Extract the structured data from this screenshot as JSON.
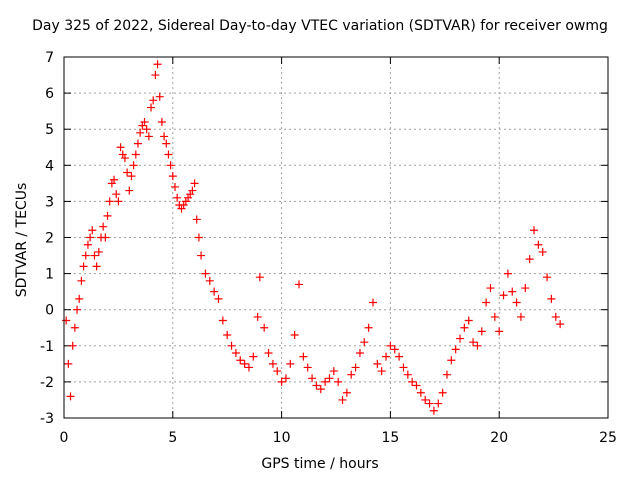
{
  "chart_data": {
    "type": "scatter",
    "title": "Day 325 of 2022, Sidereal Day-to-day VTEC variation (SDTVAR) for receiver owmg",
    "xlabel": "GPS time / hours",
    "ylabel": "SDTVAR / TECUs",
    "xlim": [
      0,
      25
    ],
    "ylim": [
      -3,
      7
    ],
    "xticks": [
      0,
      5,
      10,
      15,
      20,
      25
    ],
    "yticks": [
      -3,
      -2,
      -1,
      0,
      1,
      2,
      3,
      4,
      5,
      6,
      7
    ],
    "grid": true,
    "marker": "+",
    "color": "#ff0000",
    "series": [
      {
        "name": "SDTVAR",
        "x": [
          0.1,
          0.2,
          0.3,
          0.4,
          0.5,
          0.6,
          0.7,
          0.8,
          0.9,
          1.0,
          1.1,
          1.2,
          1.3,
          1.4,
          1.5,
          1.6,
          1.7,
          1.8,
          1.9,
          2.0,
          2.1,
          2.2,
          2.3,
          2.4,
          2.5,
          2.6,
          2.7,
          2.8,
          2.9,
          3.0,
          3.1,
          3.2,
          3.3,
          3.4,
          3.5,
          3.6,
          3.7,
          3.8,
          3.9,
          4.0,
          4.1,
          4.2,
          4.3,
          4.4,
          4.5,
          4.6,
          4.7,
          4.8,
          4.9,
          5.0,
          5.1,
          5.2,
          5.3,
          5.4,
          5.5,
          5.6,
          5.7,
          5.8,
          5.9,
          6.0,
          6.1,
          6.2,
          6.3,
          6.5,
          6.7,
          6.9,
          7.1,
          7.3,
          7.5,
          7.7,
          7.9,
          8.1,
          8.3,
          8.5,
          8.7,
          8.9,
          9.0,
          9.2,
          9.4,
          9.6,
          9.8,
          10.0,
          10.2,
          10.4,
          10.6,
          10.8,
          11.0,
          11.2,
          11.4,
          11.6,
          11.8,
          12.0,
          12.2,
          12.4,
          12.6,
          12.8,
          13.0,
          13.2,
          13.4,
          13.6,
          13.8,
          14.0,
          14.2,
          14.4,
          14.6,
          14.8,
          15.0,
          15.2,
          15.4,
          15.6,
          15.8,
          16.0,
          16.2,
          16.4,
          16.6,
          16.8,
          17.0,
          17.2,
          17.4,
          17.6,
          17.8,
          18.0,
          18.2,
          18.4,
          18.6,
          18.8,
          19.0,
          19.2,
          19.4,
          19.6,
          19.8,
          20.0,
          20.2,
          20.4,
          20.6,
          20.8,
          21.0,
          21.2,
          21.4,
          21.6,
          21.8,
          22.0,
          22.2,
          22.4,
          22.6,
          22.8
        ],
        "values": [
          -0.3,
          -1.5,
          -2.4,
          -1.0,
          -0.5,
          0.0,
          0.3,
          0.8,
          1.2,
          1.5,
          1.8,
          2.0,
          2.2,
          1.5,
          1.2,
          1.6,
          2.0,
          2.3,
          2.0,
          2.6,
          3.0,
          3.5,
          3.6,
          3.2,
          3.0,
          4.5,
          4.3,
          4.2,
          3.8,
          3.3,
          3.7,
          4.0,
          4.3,
          4.6,
          4.9,
          5.1,
          5.2,
          5.0,
          4.8,
          5.6,
          5.8,
          6.5,
          6.8,
          5.9,
          5.2,
          4.8,
          4.6,
          4.3,
          4.0,
          3.7,
          3.4,
          3.1,
          2.9,
          2.8,
          2.9,
          3.0,
          3.1,
          3.2,
          3.3,
          3.5,
          2.5,
          2.0,
          1.5,
          1.0,
          0.8,
          0.5,
          0.3,
          -0.3,
          -0.7,
          -1.0,
          -1.2,
          -1.4,
          -1.5,
          -1.6,
          -1.3,
          -0.2,
          0.9,
          -0.5,
          -1.2,
          -1.5,
          -1.7,
          -2.0,
          -1.9,
          -1.5,
          -0.7,
          0.7,
          -1.3,
          -1.6,
          -1.9,
          -2.1,
          -2.2,
          -2.0,
          -1.9,
          -1.7,
          -2.0,
          -2.5,
          -2.3,
          -1.8,
          -1.6,
          -1.2,
          -0.9,
          -0.5,
          0.2,
          -1.5,
          -1.7,
          -1.3,
          -1.0,
          -1.1,
          -1.3,
          -1.6,
          -1.8,
          -2.0,
          -2.1,
          -2.3,
          -2.5,
          -2.6,
          -2.8,
          -2.6,
          -2.3,
          -1.8,
          -1.4,
          -1.1,
          -0.8,
          -0.5,
          -0.3,
          -0.9,
          -1.0,
          -0.6,
          0.2,
          0.6,
          -0.2,
          -0.6,
          0.4,
          1.0,
          0.5,
          0.2,
          -0.2,
          0.6,
          1.4,
          2.2,
          1.8,
          1.6,
          0.9,
          0.3,
          -0.2,
          -0.4
        ]
      }
    ]
  }
}
